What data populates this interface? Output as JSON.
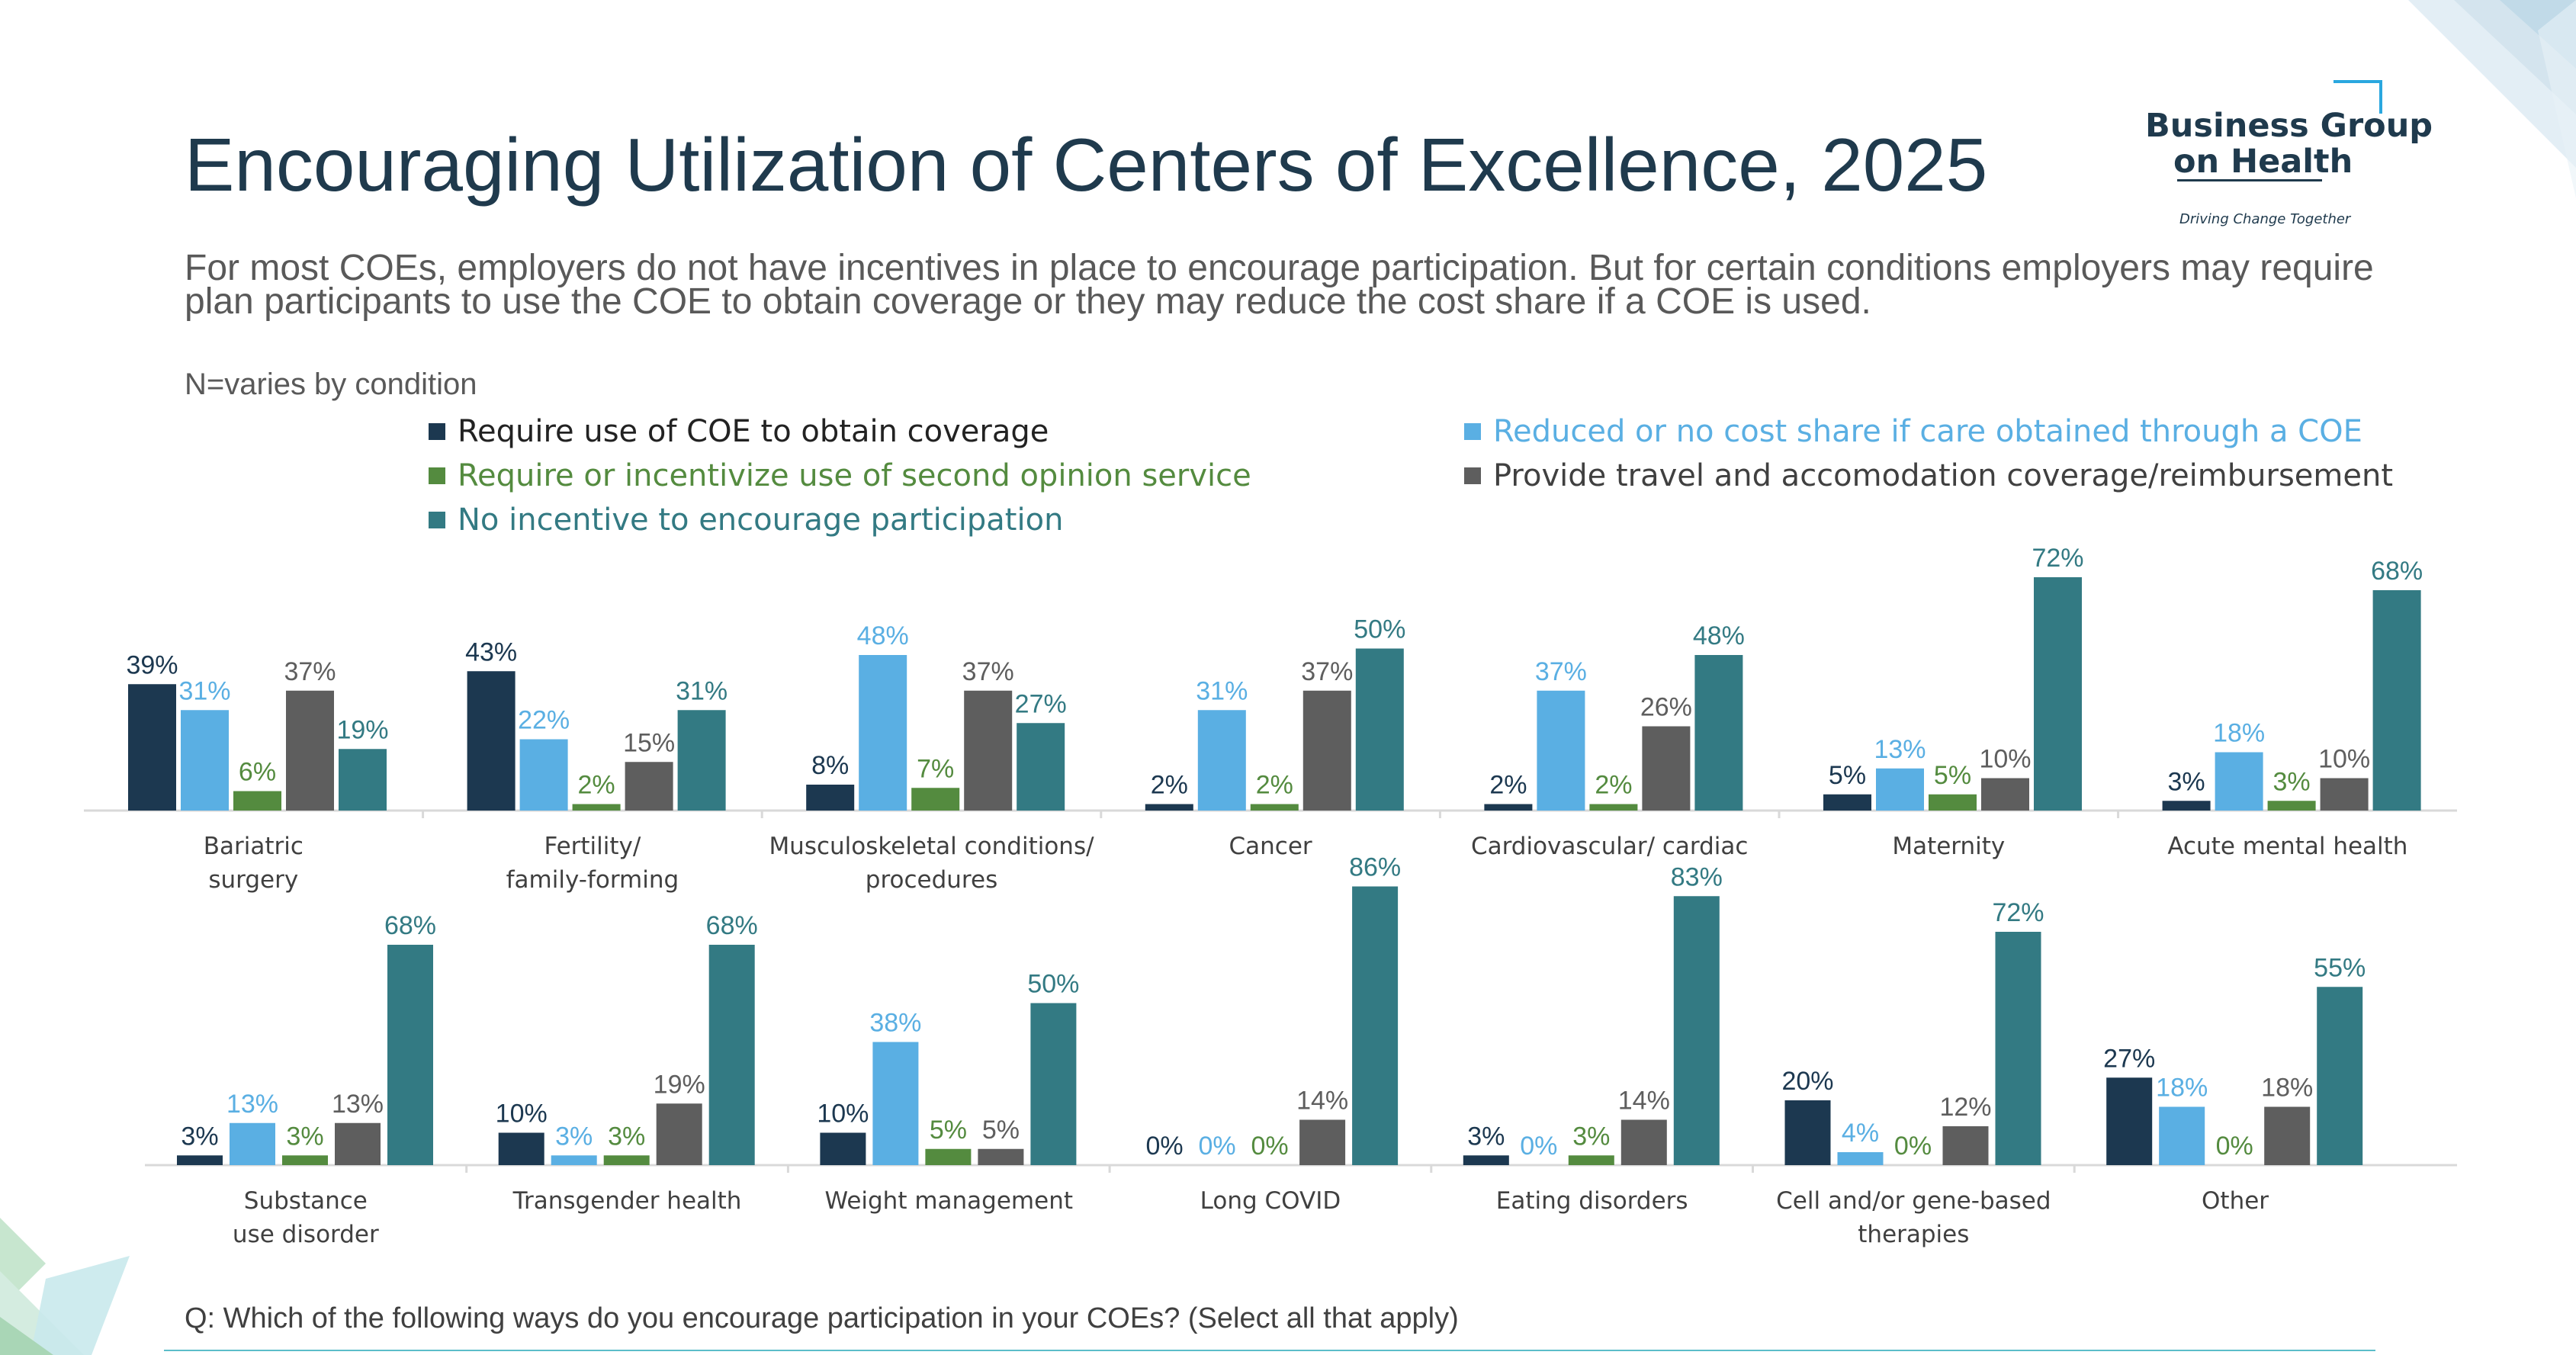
{
  "title": "Encouraging Utilization of Centers of Excellence, 2025",
  "subtitle": "For most COEs, employers do not have incentives in place to encourage participation. But for certain conditions employers may require plan participants to use the COE to obtain coverage or they may reduce the cost share if a COE is used.",
  "n_note": "N=varies by condition",
  "question": "Q: Which of the following ways do you encourage participation in your COEs? (Select all that apply)",
  "logo": {
    "line1": "Business Group",
    "line2": "on Health",
    "tagline": "Driving Change Together"
  },
  "colors": {
    "require": "#1c3850",
    "reduced": "#5aafe3",
    "second": "#548b3f",
    "travel": "#5e5e5e",
    "none": "#337a83",
    "axis": "#d9d9d9",
    "label_text": "#404040"
  },
  "legend": [
    {
      "label": "Require use of COE to obtain coverage",
      "color": "#1c3850",
      "text_color": "#222222"
    },
    {
      "label": "Reduced or no cost share if care obtained through a COE",
      "color": "#5aafe3",
      "text_color": "#5aafe3"
    },
    {
      "label": "Require or incentivize use of second opinion service",
      "color": "#548b3f",
      "text_color": "#548b3f"
    },
    {
      "label": "Provide travel and accomodation coverage/reimbursement",
      "color": "#5e5e5e",
      "text_color": "#404040"
    },
    {
      "label": "No incentive to encourage participation",
      "color": "#337a83",
      "text_color": "#337a83"
    }
  ],
  "chart_data": [
    {
      "type": "bar",
      "series_names": [
        "Require use of COE to obtain coverage",
        "Reduced or no cost share if care obtained through a COE",
        "Require or incentivize use of second opinion service",
        "Provide travel and accomodation coverage/reimbursement",
        "No incentive to encourage participation"
      ],
      "categories": [
        {
          "label": [
            "Bariatric",
            "surgery"
          ],
          "values": [
            39,
            31,
            6,
            37,
            19
          ]
        },
        {
          "label": [
            "Fertility/",
            "family-forming"
          ],
          "values": [
            43,
            22,
            2,
            15,
            31
          ]
        },
        {
          "label": [
            "Musculoskeletal conditions/",
            "procedures"
          ],
          "values": [
            8,
            48,
            7,
            37,
            27
          ]
        },
        {
          "label": [
            "Cancer"
          ],
          "values": [
            2,
            31,
            2,
            37,
            50
          ]
        },
        {
          "label": [
            "Cardiovascular/ cardiac"
          ],
          "values": [
            2,
            37,
            2,
            26,
            48
          ]
        },
        {
          "label": [
            "Maternity"
          ],
          "values": [
            5,
            13,
            5,
            10,
            72
          ]
        },
        {
          "label": [
            "Acute mental health"
          ],
          "values": [
            3,
            18,
            3,
            10,
            68
          ]
        }
      ],
      "unit": "%"
    },
    {
      "type": "bar",
      "series_names": [
        "Require use of COE to obtain coverage",
        "Reduced or no cost share if care obtained through a COE",
        "Require or incentivize use of second opinion service",
        "Provide travel and accomodation coverage/reimbursement",
        "No incentive to encourage participation"
      ],
      "categories": [
        {
          "label": [
            "Substance",
            "use disorder"
          ],
          "values": [
            3,
            13,
            3,
            13,
            68
          ]
        },
        {
          "label": [
            "Transgender health"
          ],
          "values": [
            10,
            3,
            3,
            19,
            68
          ]
        },
        {
          "label": [
            "Weight management"
          ],
          "values": [
            10,
            38,
            5,
            5,
            50
          ]
        },
        {
          "label": [
            "Long COVID"
          ],
          "values": [
            0,
            0,
            0,
            14,
            86
          ]
        },
        {
          "label": [
            "Eating disorders"
          ],
          "values": [
            3,
            0,
            3,
            14,
            83
          ]
        },
        {
          "label": [
            "Cell and/or gene-based",
            "therapies"
          ],
          "values": [
            20,
            4,
            0,
            12,
            72
          ]
        },
        {
          "label": [
            "Other"
          ],
          "values": [
            27,
            18,
            0,
            18,
            55
          ]
        }
      ],
      "unit": "%"
    }
  ]
}
